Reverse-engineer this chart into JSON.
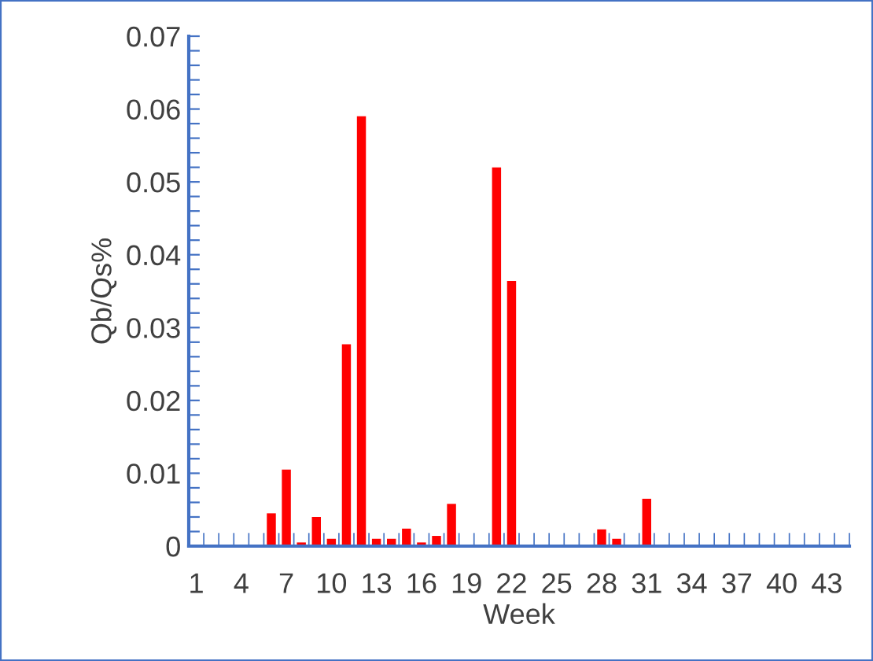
{
  "chart_data": {
    "type": "bar",
    "xlabel": "Week",
    "ylabel": "Qb/Qs%",
    "categories": [
      "1",
      null,
      null,
      "4",
      null,
      null,
      "7",
      null,
      null,
      "10",
      null,
      null,
      "13",
      null,
      null,
      "16",
      null,
      null,
      "19",
      null,
      null,
      "22",
      null,
      null,
      "25",
      null,
      null,
      "28",
      null,
      null,
      "31",
      null,
      null,
      "34",
      null,
      null,
      "37",
      null,
      null,
      "40",
      null,
      null,
      "43",
      null
    ],
    "values": [
      0,
      0,
      0,
      0,
      0,
      0.0045,
      0.0105,
      0.0005,
      0.004,
      0.001,
      0.0277,
      0.059,
      0.001,
      0.001,
      0.0024,
      0.0005,
      0.0014,
      0.0058,
      0,
      0,
      0.052,
      0.0364,
      0,
      0,
      0,
      0,
      0,
      0.0023,
      0.001,
      0,
      0.0065,
      0,
      0,
      0,
      0,
      0,
      0,
      0,
      0,
      0,
      0,
      0,
      0,
      0
    ],
    "color": "#ff0000",
    "ylim": [
      0,
      0.07
    ],
    "yticks": [
      0,
      {
        "value": 0.002,
        "label": null
      },
      {
        "value": 0.004,
        "label": null
      },
      {
        "value": 0.006,
        "label": null
      },
      {
        "value": 0.008,
        "label": null
      },
      0.01,
      {
        "value": 0.012,
        "label": null
      },
      {
        "value": 0.014,
        "label": null
      },
      {
        "value": 0.016,
        "label": null
      },
      {
        "value": 0.018,
        "label": null
      },
      0.02,
      {
        "value": 0.022,
        "label": null
      },
      {
        "value": 0.024,
        "label": null
      },
      {
        "value": 0.026,
        "label": null
      },
      {
        "value": 0.028,
        "label": null
      },
      0.03,
      {
        "value": 0.032,
        "label": null
      },
      {
        "value": 0.034,
        "label": null
      },
      {
        "value": 0.036,
        "label": null
      },
      {
        "value": 0.038,
        "label": null
      },
      0.04,
      {
        "value": 0.042,
        "label": null
      },
      {
        "value": 0.044,
        "label": null
      },
      {
        "value": 0.046,
        "label": null
      },
      {
        "value": 0.048,
        "label": null
      },
      0.05,
      {
        "value": 0.052,
        "label": null
      },
      {
        "value": 0.054,
        "label": null
      },
      {
        "value": 0.056,
        "label": null
      },
      {
        "value": 0.058,
        "label": null
      },
      0.06,
      {
        "value": 0.062,
        "label": null
      },
      {
        "value": 0.064,
        "label": null
      },
      {
        "value": 0.066,
        "label": null
      },
      {
        "value": 0.068,
        "label": null
      },
      0.07
    ],
    "grid": false,
    "legend": false
  }
}
